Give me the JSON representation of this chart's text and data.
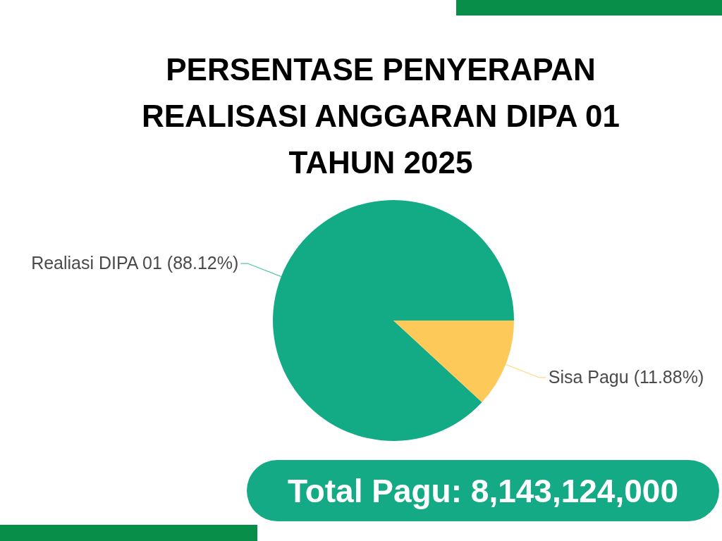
{
  "chart_data": {
    "type": "pie",
    "title": "PERSENTASE PENYERAPAN REALISASI ANGGARAN DIPA 01 TAHUN 2025",
    "categories": [
      "Realiasi DIPA 01",
      "Sisa Pagu"
    ],
    "values": [
      88.12,
      11.88
    ],
    "value_labels": [
      "(88.12%)",
      "(11.88%)"
    ],
    "colors": [
      "#13ab86",
      "#fdca5a"
    ],
    "annotations": [
      "Total Pagu: 8,143,124,000"
    ]
  }
}
